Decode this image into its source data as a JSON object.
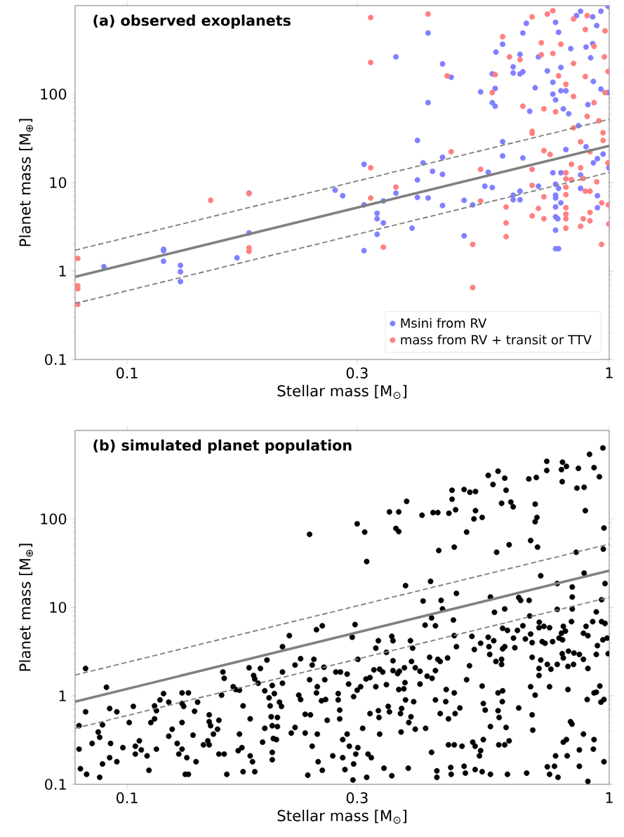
{
  "chart_data": [
    {
      "type": "scatter",
      "title": "(a) observed exoplanets",
      "xlabel": "Stellar mass [M$_{⊙}$]",
      "ylabel": "Planet mass [M$_{⊕}$]",
      "log": "xy",
      "xlim": [
        0.078,
        1.0
      ],
      "ylim": [
        0.1,
        1000
      ],
      "xticks": [
        0.1,
        0.3,
        1
      ],
      "yticks": [
        0.1,
        1,
        10,
        100
      ],
      "legend": "bottom right",
      "series": [
        {
          "name": "Msini from RV",
          "marker": "circle",
          "color": "#8080ff",
          "x": [
            0.0895,
            0.119,
            0.119,
            0.119,
            0.129,
            0.129,
            0.129,
            0.169,
            0.179,
            0.179,
            0.27,
            0.28,
            0.361,
            0.421,
            0.421,
            0.451,
            0.47,
            0.4,
            0.31,
            0.411,
            0.43,
            0.451,
            0.451,
            0.451,
            0.4,
            0.4,
            0.421,
            0.361,
            0.31,
            0.34,
            0.33,
            0.33,
            0.34,
            0.33,
            0.31,
            0.39,
            0.5,
            0.5,
            0.521,
            0.552,
            0.572,
            0.561,
            0.541,
            0.572,
            0.58,
            0.572,
            0.58,
            0.582,
            0.601,
            0.601,
            0.601,
            0.632,
            0.632,
            0.653,
            0.653,
            0.662,
            0.662,
            0.673,
            0.684,
            0.662,
            0.653,
            0.632,
            0.632,
            0.653,
            0.713,
            0.702,
            0.713,
            0.744,
            0.764,
            0.764,
            0.774,
            0.774,
            0.785,
            0.794,
            0.794,
            0.813,
            0.803,
            0.824,
            0.813,
            0.764,
            0.794,
            0.774,
            0.785,
            0.774,
            0.774,
            0.794,
            0.774,
            0.774,
            0.782,
            0.774,
            0.774,
            0.785,
            0.832,
            0.855,
            0.872,
            0.924,
            0.924,
            0.895,
            0.915,
            0.927,
            0.961,
            0.903,
            0.863,
            0.895,
            0.872,
            0.872,
            0.927,
            0.945,
            0.971,
            0.945,
            0.945,
            0.998,
            0.995,
            0.942,
            0.961,
            0.995
          ],
          "values": [
            1.12,
            1.76,
            1.7,
            1.29,
            1.16,
            0.98,
            0.76,
            1.41,
            7.6,
            2.7,
            8.2,
            7.1,
            263,
            490,
            80,
            219,
            155,
            30,
            16.1,
            16.7,
            13.4,
            19.3,
            12.4,
            5.5,
            10.7,
            6.8,
            6.7,
            7.6,
            5.6,
            6.2,
            4.5,
            3.9,
            3.5,
            2.6,
            1.7,
            3.05,
            6.3,
            2.5,
            5.6,
            9.1,
            8.8,
            13.1,
            106,
            169,
            116,
            80,
            73,
            298,
            366,
            29,
            20,
            203,
            173,
            281,
            169,
            490,
            179,
            631,
            64,
            19,
            8,
            7.2,
            6.4,
            6.4,
            263,
            118,
            9.1,
            183,
            136,
            100,
            647,
            86,
            500,
            200,
            109,
            109,
            68,
            60,
            23.6,
            12.9,
            12.9,
            9.6,
            8.6,
            7.2,
            6.7,
            5.9,
            5.3,
            4.1,
            3.9,
            2.9,
            1.79,
            1.79,
            326,
            770,
            863,
            747,
            372,
            340,
            257,
            139,
            114,
            76,
            44,
            25.4,
            12.2,
            8.6,
            16.7,
            18.6,
            21,
            7.1,
            5.2,
            14.7,
            104,
            595,
            863,
            980
          ]
        },
        {
          "name": "mass from RV + transit or TTV",
          "marker": "circle",
          "color": "#ff8080",
          "x": [
            0.079,
            0.079,
            0.079,
            0.079,
            0.149,
            0.179,
            0.179,
            0.179,
            0.32,
            0.32,
            0.421,
            0.461,
            0.47,
            0.32,
            0.361,
            0.32,
            0.34,
            0.521,
            0.521,
            0.541,
            0.541,
            0.611,
            0.611,
            0.611,
            0.601,
            0.58,
            0.572,
            0.621,
            0.653,
            0.662,
            0.692,
            0.692,
            0.692,
            0.692,
            0.692,
            0.692,
            0.723,
            0.723,
            0.732,
            0.732,
            0.754,
            0.732,
            0.732,
            0.713,
            0.764,
            0.744,
            0.764,
            0.774,
            0.785,
            0.813,
            0.813,
            0.813,
            0.813,
            0.813,
            0.813,
            0.813,
            0.813,
            0.813,
            0.794,
            0.843,
            0.843,
            0.843,
            0.843,
            0.835,
            0.835,
            0.872,
            0.872,
            0.883,
            0.892,
            0.872,
            0.883,
            0.892,
            0.9,
            0.892,
            0.9,
            0.912,
            0.912,
            0.912,
            0.912,
            0.93,
            0.93,
            0.942,
            0.952,
            0.964,
            0.964,
            0.971,
            0.971,
            0.977,
            0.98,
            0.98,
            0.994,
            0.994,
            0.998,
            0.996
          ],
          "values": [
            1.39,
            0.68,
            0.63,
            0.42,
            6.3,
            7.5,
            1.83,
            1.67,
            733,
            228,
            803,
            161,
            22.3,
            14.7,
            8.9,
            6.7,
            1.86,
            2.0,
            0.65,
            14.1,
            6.2,
            5.3,
            3.5,
            2.45,
            445,
            166,
            104,
            263,
            245,
            73,
            746,
            38,
            36,
            14.1,
            9.3,
            4.2,
            380,
            278,
            68,
            23,
            20.8,
            6.9,
            3.9,
            5.1,
            876,
            803,
            288,
            63,
            161,
            129,
            12.9,
            8.9,
            7.3,
            5.2,
            4.4,
            3.9,
            3.05,
            11,
            366,
            707,
            222,
            94,
            41.5,
            16.1,
            10.8,
            28.9,
            14.7,
            11.1,
            8.0,
            3.2,
            3.9,
            537,
            770,
            158,
            56,
            22.3,
            8.0,
            4.6,
            3.7,
            80,
            347,
            10.2,
            50,
            2.0,
            5.9,
            30,
            36.6,
            263,
            519,
            104,
            180,
            16.7,
            3.4,
            5.6
          ]
        },
        {
          "type": "line",
          "line_style": "dashed",
          "color": "#808080",
          "x": [
            0.078,
            1.0
          ],
          "values": [
            1.72,
            52
          ]
        },
        {
          "type": "line",
          "line_style": "solid",
          "color": "#808080",
          "x": [
            0.078,
            1.0
          ],
          "values": [
            0.86,
            26
          ]
        },
        {
          "type": "line",
          "line_style": "dashed",
          "color": "#808080",
          "x": [
            0.078,
            1.0
          ],
          "values": [
            0.43,
            13
          ]
        }
      ]
    },
    {
      "type": "scatter",
      "title": "(b) simulated planet population",
      "xlabel": "Stellar mass [M$_{⊙}$]",
      "ylabel": "Planet mass [M$_{⊕}$]",
      "log": "xy",
      "xlim": [
        0.078,
        1.0
      ],
      "ylim": [
        0.1,
        1000
      ],
      "xticks": [
        0.1,
        0.3,
        1
      ],
      "yticks": [
        0.1,
        1,
        10,
        100
      ],
      "series": [
        {
          "marker": "circle",
          "color": "#000000",
          "x": [
            0.082,
            0.0906,
            0.082,
            0.0795,
            0.0795,
            0.08,
            0.0824,
            0.0846,
            0.0871,
            0.0877,
            0.0889,
            0.0889,
            0.092,
            0.0952,
            0.0924,
            0.092,
            0.0952,
            0.098,
            0.0877,
            0.103,
            0.101,
            0.106,
            0.104,
            0.104,
            0.107,
            0.11,
            0.111,
            0.112,
            0.114,
            0.114,
            0.115,
            0.115,
            0.117,
            0.119,
            0.122,
            0.124,
            0.122,
            0.127,
            0.13,
            0.128,
            0.133,
            0.13,
            0.134,
            0.13,
            0.131,
            0.13,
            0.138,
            0.14,
            0.137,
            0.139,
            0.132,
            0.134,
            0.144,
            0.147,
            0.148,
            0.148,
            0.148,
            0.149,
            0.151,
            0.154,
            0.155,
            0.155,
            0.159,
            0.158,
            0.159,
            0.157,
            0.161,
            0.166,
            0.168,
            0.171,
            0.171,
            0.17,
            0.173,
            0.174,
            0.174,
            0.18,
            0.179,
            0.183,
            0.184,
            0.187,
            0.18,
            0.182,
            0.184,
            0.189,
            0.193,
            0.195,
            0.193,
            0.191,
            0.197,
            0.198,
            0.2,
            0.199,
            0.2,
            0.201,
            0.2,
            0.2,
            0.202,
            0.205,
            0.205,
            0.204,
            0.21,
            0.21,
            0.209,
            0.207,
            0.217,
            0.21,
            0.227,
            0.229,
            0.219,
            0.223,
            0.234,
            0.234,
            0.24,
            0.229,
            0.223,
            0.239,
            0.237,
            0.244,
            0.247,
            0.254,
            0.242,
            0.239,
            0.248,
            0.247,
            0.253,
            0.258,
            0.257,
            0.256,
            0.26,
            0.248,
            0.242,
            0.249,
            0.254,
            0.267,
            0.271,
            0.277,
            0.274,
            0.274,
            0.276,
            0.276,
            0.28,
            0.28,
            0.283,
            0.286,
            0.289,
            0.286,
            0.288,
            0.297,
            0.3,
            0.311,
            0.314,
            0.35,
            0.366,
            0.361,
            0.366,
            0.38,
            0.378,
            0.387,
            0.391,
            0.354,
            0.356,
            0.332,
            0.328,
            0.345,
            0.356,
            0.367,
            0.376,
            0.389,
            0.396,
            0.405,
            0.419,
            0.429,
            0.436,
            0.424,
            0.441,
            0.446,
            0.462,
            0.411,
            0.426,
            0.415,
            0.428,
            0.436,
            0.448,
            0.451,
            0.409,
            0.431,
            0.441,
            0.443,
            0.465,
            0.472,
            0.472,
            0.48,
            0.477,
            0.482,
            0.475,
            0.477,
            0.482,
            0.5,
            0.514,
            0.528,
            0.506,
            0.524,
            0.528,
            0.545,
            0.519,
            0.525,
            0.541,
            0.561,
            0.576,
            0.563,
            0.565,
            0.582,
            0.598,
            0.598,
            0.601,
            0.607,
            0.561,
            0.574,
            0.588,
            0.607,
            0.611,
            0.598,
            0.625,
            0.632,
            0.584,
            0.62,
            0.567,
            0.578,
            0.607,
            0.601,
            0.615,
            0.633,
            0.645,
            0.637,
            0.649,
            0.655,
            0.682,
            0.684,
            0.662,
            0.67,
            0.687,
            0.692,
            0.681,
            0.706,
            0.702,
            0.708,
            0.702,
            0.687,
            0.71,
            0.721,
            0.716,
            0.715,
            0.732,
            0.752,
            0.726,
            0.736,
            0.763,
            0.78,
            0.787,
            0.796,
            0.803,
            0.811,
            0.8,
            0.742,
            0.742,
            0.796,
            0.8,
            0.815,
            0.799,
            0.863,
            0.857,
            0.887,
            0.892,
            0.91,
            0.93,
            0.954,
            0.97,
            0.975,
            0.972,
            0.854,
            0.887,
            0.838,
            0.838,
            0.78,
            0.98,
            0.964,
            0.94,
            0.924,
            0.895,
            0.884,
            0.903,
            0.964,
            0.98,
            0.99,
            0.97,
            0.835,
            0.838,
            0.884,
            0.903,
            0.94,
            0.945,
            0.995,
            0.845,
            0.823,
            0.803,
            0.821,
            0.843,
            0.867,
            0.799,
            0.78,
            0.757,
            0.744,
            0.721,
            0.715,
            0.715,
            0.692,
            0.687,
            0.702,
            0.752,
            0.821,
            0.93,
            0.956,
            0.94,
            0.975,
            0.961,
            0.9,
            0.692,
            0.694,
            0.831,
            0.837,
            0.884,
            0.93,
            0.803,
            0.815,
            0.867,
            0.927,
            0.774,
            0.818,
            0.867,
            0.77,
            0.744,
            0.752,
            0.783,
            0.975,
            0.903,
            0.674,
            0.615,
            0.567,
            0.545,
            0.527,
            0.5,
            0.503,
            0.469,
            0.47,
            0.439,
            0.439,
            0.383,
            0.341,
            0.354,
            0.314,
            0.294,
            0.295,
            0.301,
            0.298,
            0.308,
            0.316,
            0.321,
            0.334,
            0.319,
            0.332,
            0.333,
            0.348,
            0.35,
            0.369,
            0.37,
            0.384,
            0.388,
            0.396,
            0.416,
            0.428,
            0.446,
            0.464,
            0.479,
            0.49,
            0.464,
            0.477,
            0.495,
            0.521,
            0.527,
            0.541,
            0.538,
            0.548,
            0.567,
            0.611,
            0.59,
            0.607,
            0.62,
            0.649,
            0.588,
            0.591,
            0.6,
            0.548,
            0.553,
            0.506,
            0.513,
            0.545,
            0.588,
            0.601,
            0.459,
            0.477,
            0.458,
            0.436,
            0.405,
            0.393,
            0.378,
            0.371,
            0.375,
            0.366,
            0.377,
            0.356,
            0.364,
            0.345,
            0.328,
            0.334,
            0.339,
            0.325,
            0.313,
            0.319,
            0.3,
            0.305,
            0.295,
            0.301,
            0.293
          ],
          "values": [
            2.04,
            1.25,
            0.66,
            0.46,
            0.25,
            0.15,
            0.13,
            0.29,
            0.39,
            0.34,
            0.47,
            0.17,
            0.72,
            0.66,
            0.29,
            0.2,
            0.18,
            0.26,
            0.12,
            0.76,
            0.5,
            0.31,
            0.27,
            0.22,
            0.245,
            0.21,
            0.144,
            0.5,
            0.55,
            0.77,
            0.68,
            0.25,
            0.9,
            1.06,
            0.85,
            0.42,
            0.35,
            0.29,
            0.25,
            0.22,
            0.2,
            1.08,
            1.08,
            0.82,
            0.76,
            0.5,
            0.67,
            0.85,
            0.36,
            0.18,
            0.13,
            0.13,
            0.28,
            0.31,
            0.28,
            0.61,
            0.51,
            0.46,
            0.37,
            0.42,
            0.53,
            0.22,
            0.22,
            1.86,
            1.58,
            1.02,
            0.13,
            1.27,
            1.18,
            1.16,
            0.37,
            0.24,
            0.26,
            0.77,
            0.139,
            0.55,
            2.08,
            1.7,
            1.55,
            1.39,
            0.21,
            0.18,
            0.139,
            2.04,
            1.14,
            2.54,
            0.43,
            0.3,
            0.95,
            0.77,
            1.31,
            0.58,
            0.46,
            0.33,
            0.23,
            0.19,
            1.06,
            0.57,
            0.45,
            0.32,
            1.86,
            1.39,
            0.76,
            0.85,
            4.8,
            3.6,
            1.02,
            0.91,
            0.38,
            0.44,
            0.38,
            0.62,
            0.61,
            2.63,
            2.23,
            67,
            0.127,
            2.59,
            5.6,
            6.2,
            2.23,
            1.52,
            1.27,
            1.08,
            0.88,
            0.91,
            1.52,
            2.11,
            0.53,
            0.37,
            0.27,
            0.18,
            0.144,
            0.21,
            1.86,
            1.86,
            1.06,
            0.9,
            0.69,
            0.55,
            0.32,
            0.2,
            0.147,
            0.37,
            0.27,
            1.76,
            1.36,
            6.4,
            88,
            71,
            33,
            120,
            120,
            78,
            72,
            158,
            17.6,
            4.2,
            3.46,
            4.7,
            4.2,
            4.2,
            3.46,
            3.1,
            2.49,
            1.9,
            2.08,
            2.45,
            2.08,
            1.9,
            1.67,
            1.58,
            1.93,
            2.73,
            2.59,
            2.45,
            2.68,
            11.8,
            19.7,
            6.3,
            7.6,
            6.2,
            12.0,
            9.6,
            110,
            118,
            118,
            44,
            116,
            167,
            211,
            127,
            48,
            14.4,
            7.2,
            4.8,
            3.6,
            215,
            200,
            204,
            71,
            100,
            124,
            104,
            4.7,
            3.34,
            3.93,
            4.6,
            4.2,
            3.6,
            2.94,
            2.45,
            2.27,
            2.59,
            3.4,
            3.6,
            310,
            245,
            346,
            289,
            211,
            150,
            155,
            137,
            42,
            51,
            13.1,
            8.8,
            9.6,
            5.8,
            5.5,
            4.5,
            5.5,
            3.5,
            12.9,
            12.0,
            12.0,
            8.0,
            6.2,
            4.4,
            5.0,
            4.0,
            283,
            294,
            147,
            104,
            93,
            57,
            48,
            22.8,
            6.8,
            5.9,
            6.1,
            5.9,
            4.1,
            3.93,
            4.1,
            9.5,
            4.5,
            5.1,
            6.1,
            5.4,
            4.3,
            448,
            353,
            361,
            438,
            392,
            264,
            373,
            223,
            228,
            124,
            537,
            380,
            300,
            634,
            79,
            45.6,
            42,
            24.4,
            17.0,
            13.1,
            18.6,
            18.6,
            12.2,
            8.9,
            6.9,
            6.1,
            5.1,
            4.8,
            6.9,
            6.6,
            4.5,
            4.3,
            6.9,
            9.6,
            2.59,
            2.04,
            2.94,
            3.7,
            3.0,
            3.05,
            3.2,
            2.68,
            2.15,
            2.27,
            2.94,
            3.0,
            2.27,
            2.0,
            2.27,
            2.54,
            2.04,
            1.7,
            2.73,
            1.27,
            1.02,
            1.27,
            1.18,
            1.08,
            1.29,
            1.1,
            0.91,
            0.85,
            0.91,
            0.61,
            0.41,
            0.51,
            0.48,
            0.37,
            0.32,
            0.3,
            0.32,
            0.245,
            0.25,
            0.21,
            0.21,
            0.16,
            0.16,
            0.158,
            0.13,
            0.12,
            0.18,
            0.108,
            0.134,
            0.13,
            0.13,
            0.139,
            0.147,
            0.16,
            0.134,
            0.155,
            0.13,
            0.142,
            0.12,
            0.152,
            0.152,
            0.125,
            0.12,
            0.112,
            0.17,
            0.26,
            0.22,
            0.43,
            0.22,
            0.2,
            0.37,
            0.63,
            0.68,
            0.57,
            0.76,
            0.66,
            0.63,
            0.39,
            0.5,
            0.58,
            0.42,
            0.43,
            0.23,
            0.63,
            0.55,
            0.63,
            0.73,
            0.28,
            0.28,
            0.27,
            0.3,
            0.27,
            0.24,
            0.21,
            0.32,
            0.45,
            0.44,
            0.28,
            0.28,
            0.31,
            0.73,
            0.68,
            0.57,
            0.86,
            0.82,
            0.69,
            1.52,
            2.19,
            1.29,
            1.08,
            1.14,
            1.18,
            1.08,
            0.86,
            0.9,
            1.36,
            0.86,
            0.9,
            0.72,
            1.2,
            1.18,
            1.41,
            1.93,
            1.79,
            1.34,
            1.27,
            2.0,
            1.86,
            1.97,
            1.55,
            1.61,
            1.16,
            1.27,
            0.98,
            2.59,
            4.6
          ]
        },
        {
          "type": "line",
          "line_style": "dashed",
          "color": "#808080",
          "x": [
            0.078,
            1.0
          ],
          "values": [
            1.72,
            52
          ]
        },
        {
          "type": "line",
          "line_style": "solid",
          "color": "#808080",
          "x": [
            0.078,
            1.0
          ],
          "values": [
            0.86,
            26
          ]
        },
        {
          "type": "line",
          "line_style": "dashed",
          "color": "#808080",
          "x": [
            0.078,
            1.0
          ],
          "values": [
            0.43,
            13
          ]
        }
      ]
    }
  ]
}
